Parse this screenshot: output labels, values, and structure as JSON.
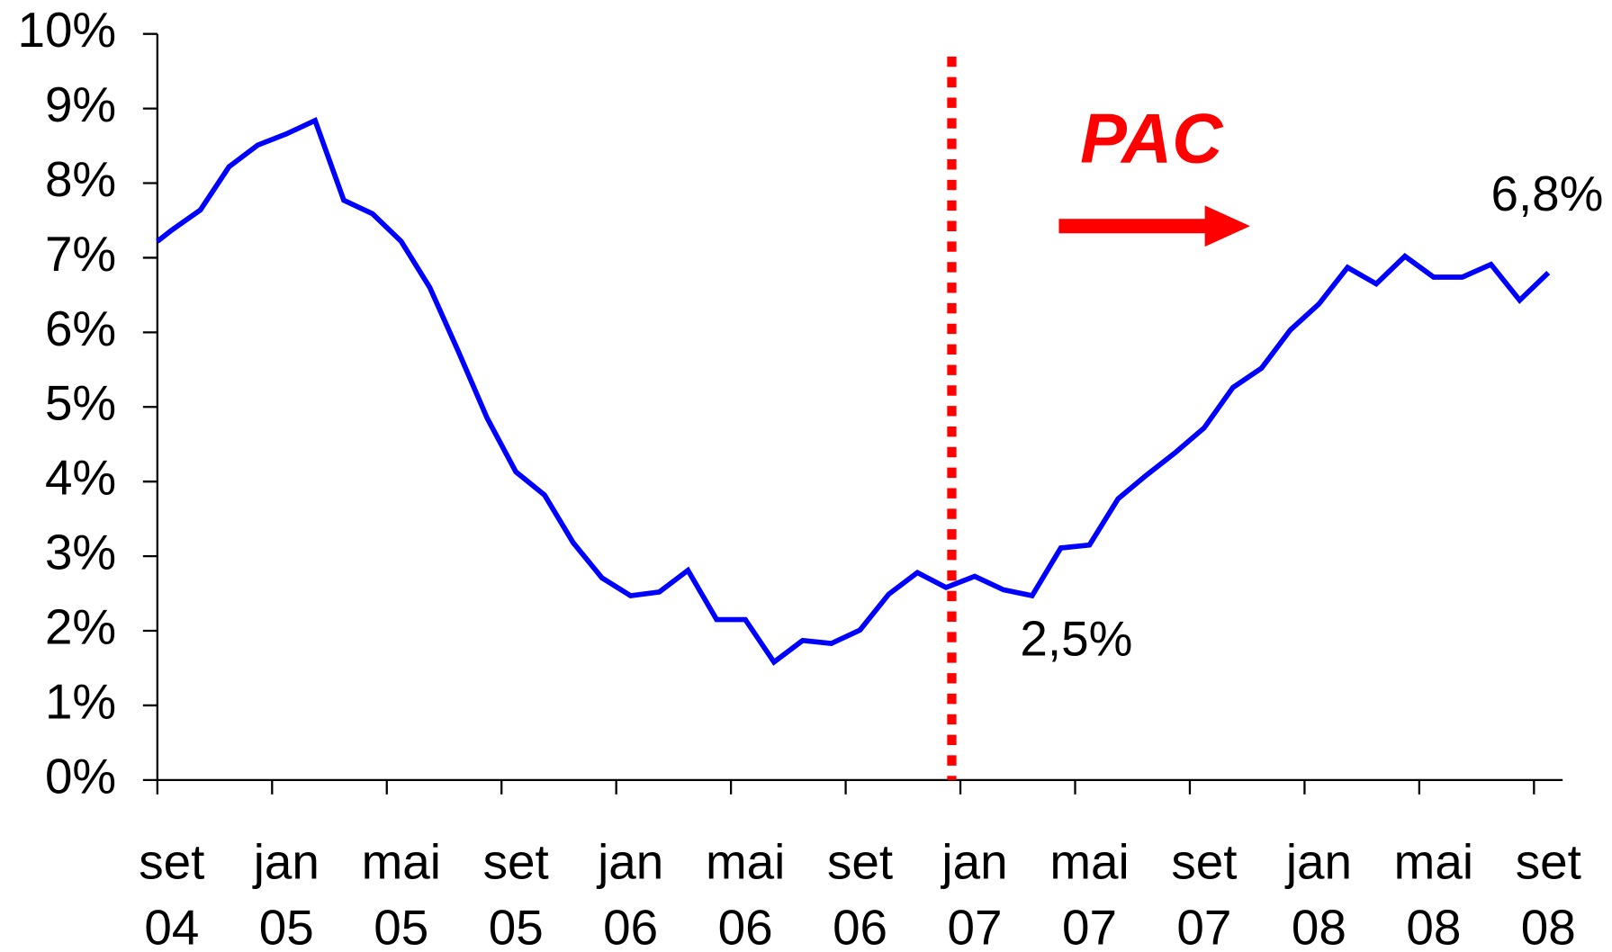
{
  "chart_data": {
    "type": "line",
    "x": [
      0,
      0.5,
      1.5,
      2.5,
      3.5,
      4.5,
      5.5,
      6.5,
      7.5,
      8.5,
      9.5,
      10.5,
      11.5,
      12.5,
      13.5,
      14.5,
      15.5,
      16.5,
      17.5,
      18.5,
      19.5,
      20.5,
      21.5,
      22.5,
      23.5,
      24.5,
      25.5,
      26.5,
      27.5,
      28.5,
      29.5,
      30.5,
      31.5,
      32.5,
      33.5,
      34.5,
      35.5,
      36.5,
      37.5,
      38.5,
      39.5,
      40.5,
      41.5,
      42.5,
      43.5,
      44.5,
      45.5,
      46.5,
      47.5,
      48.5
    ],
    "series": [
      {
        "color": "#0000ff",
        "values": [
          7.22,
          7.37,
          7.64,
          8.22,
          8.51,
          8.66,
          8.84,
          7.77,
          7.59,
          7.22,
          6.6,
          5.74,
          4.85,
          4.13,
          3.82,
          3.18,
          2.71,
          2.47,
          2.52,
          2.81,
          2.15,
          2.15,
          1.58,
          1.87,
          1.83,
          2.01,
          2.49,
          2.78,
          2.58,
          2.73,
          2.55,
          2.47,
          3.11,
          3.15,
          3.77,
          4.09,
          4.39,
          4.72,
          5.26,
          5.52,
          6.03,
          6.38,
          6.87,
          6.65,
          7.02,
          6.74,
          6.74,
          6.91,
          6.43,
          6.8
        ]
      }
    ],
    "xlim": [
      0,
      49
    ],
    "xticks": [
      {
        "value": 0,
        "label": "set\n04"
      },
      {
        "value": 4,
        "label": "jan\n05"
      },
      {
        "value": 8,
        "label": "mai\n05"
      },
      {
        "value": 12,
        "label": "set\n05"
      },
      {
        "value": 16,
        "label": "jan\n06"
      },
      {
        "value": 20,
        "label": "mai\n06"
      },
      {
        "value": 24,
        "label": "set\n06"
      },
      {
        "value": 28,
        "label": "jan\n07"
      },
      {
        "value": 32,
        "label": "mai\n07"
      },
      {
        "value": 36,
        "label": "set\n07"
      },
      {
        "value": 40,
        "label": "jan\n08"
      },
      {
        "value": 44,
        "label": "mai\n08"
      },
      {
        "value": 48,
        "label": "set\n08"
      }
    ],
    "ylim": [
      0,
      10
    ],
    "yticks": [
      {
        "value": 0,
        "label": "0%"
      },
      {
        "value": 1,
        "label": "1%"
      },
      {
        "value": 2,
        "label": "2%"
      },
      {
        "value": 3,
        "label": "3%"
      },
      {
        "value": 4,
        "label": "4%"
      },
      {
        "value": 5,
        "label": "5%"
      },
      {
        "value": 6,
        "label": "6%"
      },
      {
        "value": 7,
        "label": "7%"
      },
      {
        "value": 8,
        "label": "8%"
      },
      {
        "value": 9,
        "label": "9%"
      },
      {
        "value": 10,
        "label": "10%"
      }
    ],
    "vline_x": 27.7,
    "vline_color": "#ff0000",
    "annotations": {
      "pac": "PAC",
      "start": "2,5%",
      "end": "6,8%"
    }
  }
}
